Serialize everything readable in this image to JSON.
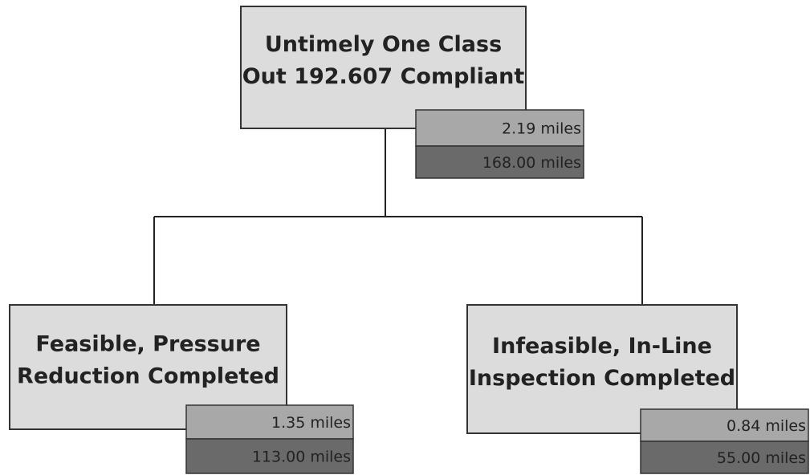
{
  "nodes": [
    {
      "label": [
        "Untimely One Class",
        "Out 192.607 Compliant"
      ],
      "values": [
        "2.19 miles",
        "168.00 miles"
      ]
    },
    {
      "label": [
        "Feasible, Pressure",
        "Reduction Completed"
      ],
      "values": [
        "1.35 miles",
        "113.00 miles"
      ]
    },
    {
      "label": [
        "Infeasible, In-Line",
        "Inspection Completed"
      ],
      "values": [
        "0.84 miles",
        "55.00 miles"
      ]
    }
  ]
}
